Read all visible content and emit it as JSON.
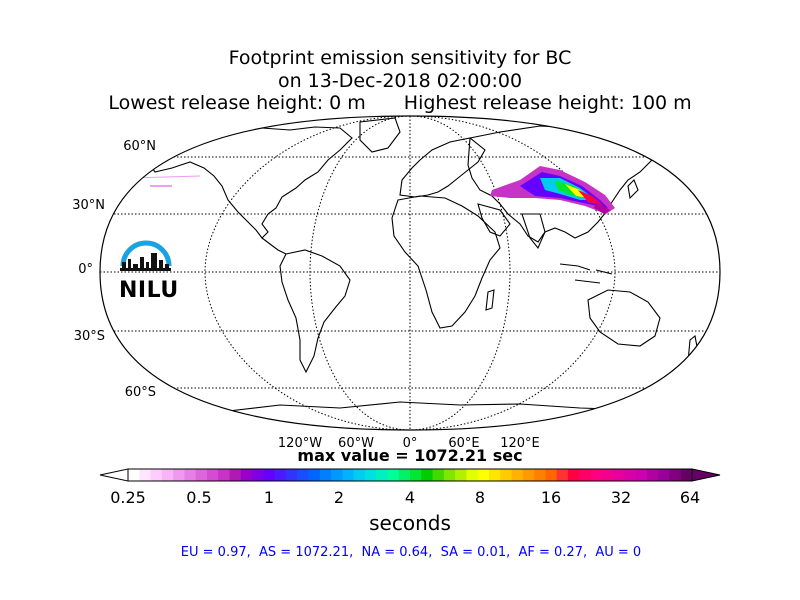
{
  "title": {
    "line1": "Footprint emission sensitivity for BC",
    "line2": "on 13-Dec-2018 02:00:00",
    "line3_left": "Lowest release height: 0 m",
    "line3_right": "Highest release height: 100 m"
  },
  "map": {
    "lat_labels": [
      "60°N",
      "30°N",
      "0°",
      "30°S",
      "60°S"
    ],
    "lon_labels": [
      "120°W",
      "60°W",
      "0°",
      "60°E",
      "120°E"
    ],
    "logo_text": "NILU"
  },
  "max_value": "max value = 1072.21 sec",
  "colorbar": {
    "ticks": [
      "0.25",
      "0.5",
      "1",
      "2",
      "4",
      "8",
      "16",
      "32",
      "64"
    ],
    "unit": "seconds",
    "colors": [
      "#ffffff",
      "#ffe6ff",
      "#ffccff",
      "#f9b3f9",
      "#f099f0",
      "#e680e6",
      "#dd66dd",
      "#d24dd2",
      "#c633c6",
      "#b01ab4",
      "#9900cc",
      "#8000e6",
      "#6600ff",
      "#4d1aff",
      "#3333ff",
      "#1a4dff",
      "#0066ff",
      "#0080ff",
      "#0099ff",
      "#00b3ff",
      "#00ccf0",
      "#00e0e0",
      "#00f0c0",
      "#00ff99",
      "#00f066",
      "#00e633",
      "#00cc00",
      "#40d900",
      "#80e600",
      "#b3f000",
      "#e0ff00",
      "#ffff00",
      "#ffe600",
      "#ffcc00",
      "#ffb300",
      "#ff9900",
      "#ff8000",
      "#ff6600",
      "#ff3333",
      "#ff0044",
      "#ff0066",
      "#ff0080",
      "#f20090",
      "#e6009e",
      "#d900a8",
      "#cc00b0",
      "#b300a0",
      "#990099",
      "#800080",
      "#660066"
    ]
  },
  "footer": "EU = 0.97,  AS = 1072.21,  NA = 0.64,  SA = 0.01,  AF = 0.27,  AU = 0"
}
